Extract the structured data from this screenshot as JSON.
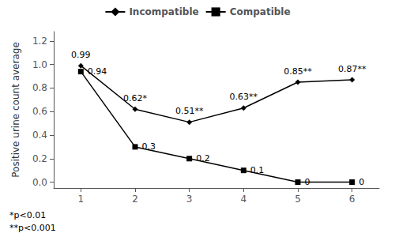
{
  "chart_data": {
    "type": "line",
    "ylabel": "Positive urine count average",
    "x": [
      1,
      2,
      3,
      4,
      5,
      6
    ],
    "series": [
      {
        "name": "Incompatible",
        "color": "#000000",
        "marker": "diamond",
        "values": [
          0.99,
          0.62,
          0.51,
          0.63,
          0.85,
          0.87
        ],
        "value_labels": [
          "0.99",
          "0.62*",
          "0.51**",
          "0.63**",
          "0.85**",
          "0.87**"
        ]
      },
      {
        "name": "Compatible",
        "color": "#000000",
        "marker": "square",
        "values": [
          0.94,
          0.3,
          0.2,
          0.1,
          0.0,
          0.0
        ]
      }
    ],
    "xlim": [
      0.5,
      6.5
    ],
    "xticks": [
      1,
      2,
      3,
      4,
      5,
      6
    ],
    "ylim": [
      -0.05,
      1.28
    ],
    "yticks": [
      {
        "value": 0,
        "label": "0.0"
      },
      0.2,
      0.4,
      0.6,
      0.8,
      {
        "value": 1,
        "label": "1.0"
      },
      1.2
    ],
    "legend": "top",
    "grid": false,
    "data_labels": true,
    "annotations": [
      "*p<0.01",
      "**p<0.001"
    ]
  }
}
